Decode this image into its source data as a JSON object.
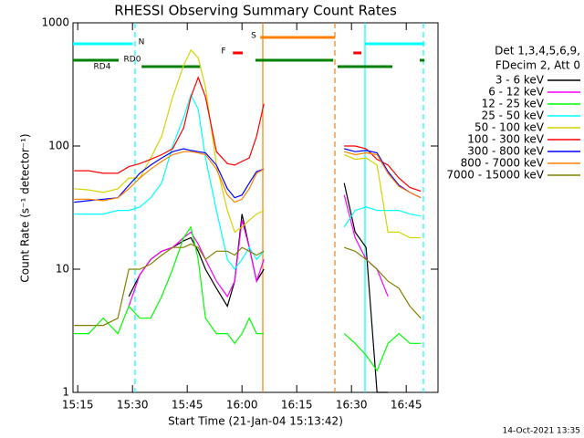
{
  "chart_data": {
    "type": "line",
    "title": "RHESSI Observing Summary Count Rates",
    "x_label": "Start Time (21-Jan-04 15:13:42)",
    "y_label": "Count Rate (s⁻¹ detector⁻¹)",
    "footer": "14-Oct-2021 13:35",
    "legend_title": [
      "Det 1,3,4,5,6,9,",
      "FDecim 2, Att 0"
    ],
    "log_y": true,
    "xlim": [
      13.7,
      113.7
    ],
    "xticks": [
      {
        "value": 15,
        "label": "15:15"
      },
      {
        "value": 30,
        "label": "15:30"
      },
      {
        "value": 45,
        "label": "15:45"
      },
      {
        "value": 60,
        "label": "16:00"
      },
      {
        "value": 75,
        "label": "16:15"
      },
      {
        "value": 90,
        "label": "16:30"
      },
      {
        "value": 105,
        "label": "16:45"
      }
    ],
    "ylim": [
      1,
      1000
    ],
    "yticks": [
      1,
      10,
      100,
      1000
    ],
    "x": [
      14,
      18,
      22,
      26,
      29,
      32,
      35,
      38,
      41,
      44,
      46,
      48,
      50,
      53,
      56,
      58,
      60,
      62,
      64,
      66,
      77,
      88,
      91,
      94,
      97,
      100,
      103,
      106,
      109
    ],
    "series": [
      {
        "name": "3 - 6 keV",
        "color": "#000000",
        "values": [
          null,
          null,
          null,
          null,
          6,
          9,
          12,
          14,
          15,
          17,
          18,
          14,
          10,
          7,
          5,
          8,
          28,
          15,
          8,
          10,
          null,
          50,
          20,
          15,
          1,
          1,
          null,
          null,
          null
        ]
      },
      {
        "name": "6 - 12 keV",
        "color": "#ff00ff",
        "values": [
          null,
          null,
          null,
          null,
          5,
          9,
          12,
          14,
          15,
          18,
          20,
          16,
          12,
          8,
          6,
          8,
          25,
          15,
          8,
          12,
          null,
          40,
          18,
          12,
          10,
          6,
          null,
          null,
          null
        ]
      },
      {
        "name": "12 - 25 keV",
        "color": "#00ff00",
        "values": [
          3,
          3,
          4,
          3,
          5,
          4,
          4,
          6,
          10,
          18,
          22,
          12,
          4,
          3,
          3,
          2.5,
          3,
          4,
          3,
          3,
          null,
          3,
          2.5,
          2,
          1.5,
          2.5,
          3,
          2.5,
          2.5
        ]
      },
      {
        "name": "25 - 50 keV",
        "color": "#00ffff",
        "values": [
          28,
          28,
          28,
          30,
          30,
          32,
          38,
          50,
          100,
          170,
          260,
          200,
          80,
          30,
          12,
          10,
          12,
          15,
          12,
          14,
          null,
          22,
          30,
          32,
          30,
          30,
          30,
          28,
          27
        ]
      },
      {
        "name": "50 - 100 keV",
        "color": "#d4d400",
        "values": [
          45,
          44,
          42,
          45,
          55,
          55,
          80,
          120,
          250,
          450,
          600,
          520,
          300,
          70,
          30,
          20,
          22,
          25,
          28,
          30,
          null,
          85,
          78,
          80,
          70,
          20,
          20,
          18,
          18
        ]
      },
      {
        "name": "100 - 300 keV",
        "color": "#ff0000",
        "values": [
          63,
          63,
          60,
          60,
          68,
          72,
          78,
          85,
          95,
          140,
          250,
          360,
          250,
          90,
          72,
          70,
          75,
          80,
          120,
          220,
          null,
          100,
          100,
          95,
          78,
          70,
          55,
          46,
          43
        ]
      },
      {
        "name": "300 - 800 keV",
        "color": "#0000ff",
        "values": [
          35,
          36,
          37,
          38,
          48,
          60,
          70,
          80,
          90,
          95,
          92,
          90,
          88,
          70,
          45,
          38,
          40,
          50,
          62,
          65,
          null,
          95,
          90,
          92,
          88,
          62,
          48,
          42,
          38
        ]
      },
      {
        "name": "800 - 7000 keV",
        "color": "#ff8000",
        "values": [
          37,
          37,
          36,
          38,
          45,
          55,
          65,
          75,
          85,
          90,
          90,
          88,
          85,
          65,
          40,
          35,
          37,
          45,
          60,
          65,
          null,
          90,
          85,
          88,
          85,
          60,
          47,
          42,
          38
        ]
      },
      {
        "name": "7000 - 15000 keV",
        "color": "#808000",
        "values": [
          3.5,
          3.5,
          3.5,
          4,
          10,
          10,
          11,
          13,
          15,
          15,
          16,
          15,
          12,
          14,
          14,
          13,
          15,
          14,
          13,
          14,
          null,
          15,
          14,
          12,
          10,
          8,
          7,
          5,
          4
        ]
      }
    ],
    "flags": [
      {
        "name": "N",
        "color": "#00ffff",
        "segments": [
          [
            13.7,
            30
          ],
          [
            93.7,
            110
          ]
        ]
      },
      {
        "name": "RD0",
        "color": "#008000",
        "segments": [
          [
            13.7,
            26.2
          ],
          [
            63.7,
            85
          ],
          [
            108.7,
            110
          ]
        ]
      },
      {
        "name": "RD4",
        "color": "#008000",
        "segments": [
          [
            32.5,
            48.7
          ],
          [
            86.2,
            101.2
          ]
        ]
      },
      {
        "name": "F",
        "color": "#ff0000",
        "segments": [
          [
            57.5,
            60.2
          ],
          [
            90.5,
            92.7
          ]
        ]
      },
      {
        "name": "S",
        "color": "#ff8000",
        "segments": [
          [
            65,
            85.5
          ]
        ]
      }
    ],
    "vlines": [
      {
        "x": 30.7,
        "color": "#00ffff",
        "dashed": true
      },
      {
        "x": 93.7,
        "color": "#00ffff",
        "dashed": false
      },
      {
        "x": 109.7,
        "color": "#00ffff",
        "dashed": true
      },
      {
        "x": 65.7,
        "color": "#ff8000",
        "dashed": false
      },
      {
        "x": 85.45,
        "color": "#ff8000",
        "dashed": true
      }
    ]
  }
}
